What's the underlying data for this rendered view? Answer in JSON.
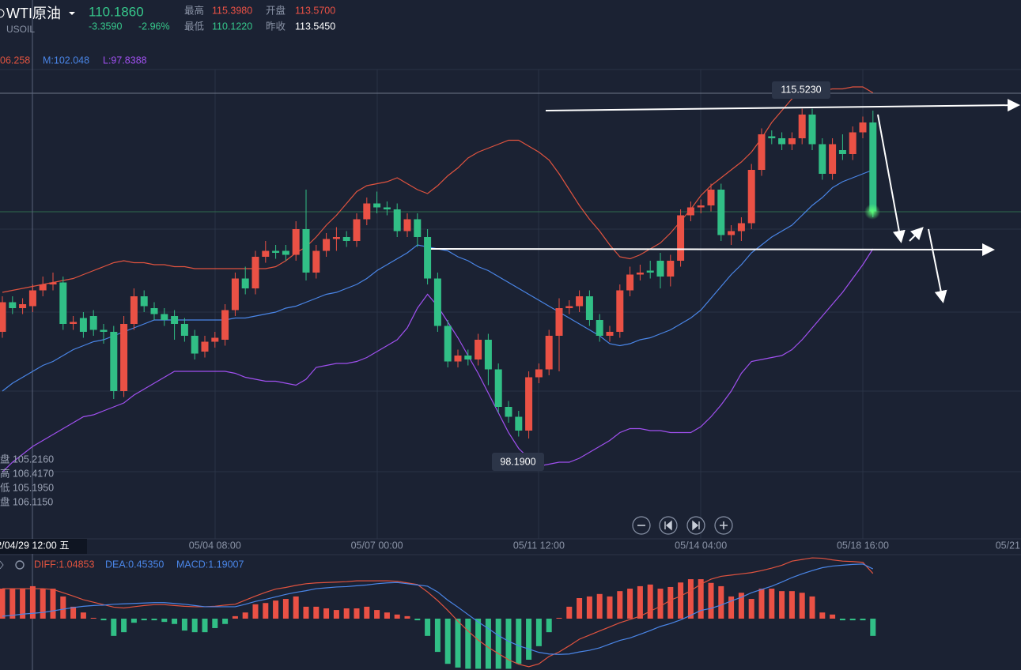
{
  "header": {
    "symbol": "WTI原油",
    "code": "USOIL",
    "price": "110.1860",
    "change": "-3.3590",
    "change_pct": "-2.96%",
    "stats": [
      {
        "label": "最高",
        "value": "115.3980"
      },
      {
        "label": "开盘",
        "value": "113.5700"
      },
      {
        "label": "最低",
        "value": "110.1220"
      },
      {
        "label": "昨收",
        "value": "113.5450"
      }
    ]
  },
  "crosshair_info": [
    "盘 105.2160",
    "高 106.4170",
    "低 105.1950",
    "盘 106.1150"
  ],
  "chart_data": [
    {
      "type": "candlestick",
      "up_color": "#ea5145",
      "down_color": "#31bf86",
      "ylim": [
        92.8,
        120
      ],
      "annotations": [
        {
          "label": "115.5230"
        },
        {
          "label": "98.1900"
        }
      ],
      "categories": [
        null,
        null,
        null,
        "2/04/29 12:00 五",
        null,
        null,
        null,
        null,
        null,
        null,
        null,
        null,
        null,
        null,
        null,
        null,
        null,
        null,
        null,
        null,
        null,
        "05/04 08:00",
        null,
        null,
        null,
        null,
        null,
        null,
        null,
        null,
        null,
        null,
        null,
        null,
        null,
        null,
        null,
        "05/07 00:00",
        null,
        null,
        null,
        null,
        null,
        null,
        null,
        null,
        null,
        null,
        null,
        null,
        null,
        null,
        null,
        "05/11 12:00",
        null,
        null,
        null,
        null,
        null,
        null,
        null,
        null,
        null,
        null,
        null,
        null,
        null,
        null,
        null,
        "05/14 04:00",
        null,
        null,
        null,
        null,
        null,
        null,
        null,
        null,
        null,
        null,
        null,
        null,
        null,
        null,
        null,
        "05/18 16:00",
        null,
        null,
        null,
        null,
        null,
        null,
        null,
        null,
        null,
        null,
        null,
        null,
        null,
        "05/21"
      ],
      "open": [
        103.2,
        104.7,
        104.4,
        104.5,
        105.3,
        105.6,
        105.7,
        103.6,
        103.9,
        104.0,
        103.3,
        103.2,
        100.2,
        103.6,
        105.0,
        104.4,
        104.1,
        104.0,
        103.6,
        103.0,
        102.2,
        102.7,
        102.8,
        104.3,
        105.9,
        105.4,
        107.0,
        107.3,
        107.3,
        107.1,
        108.4,
        106.2,
        107.3,
        107.9,
        108.0,
        107.8,
        108.9,
        109.7,
        109.5,
        109.4,
        108.3,
        108.9,
        108.0,
        105.9,
        103.5,
        101.7,
        102.0,
        101.8,
        102.8,
        101.3,
        99.4,
        98.9,
        98.2,
        100.9,
        101.3,
        103.0,
        104.4,
        104.5,
        105.0,
        103.8,
        103.0,
        103.2,
        105.3,
        106.1,
        106.3,
        106.8,
        106.0,
        106.8,
        109.1,
        109.5,
        109.6,
        110.4,
        108.1,
        108.3,
        108.7,
        111.4,
        113.1,
        113.0,
        112.7,
        113.0,
        114.2,
        112.7,
        111.2,
        112.4,
        112.2,
        113.3,
        113.8,
        null,
        null,
        null,
        null,
        null,
        null,
        null,
        null,
        null,
        null,
        null,
        null,
        null
      ],
      "high": [
        105.0,
        105.0,
        104.9,
        105.6,
        106.0,
        106.2,
        106.0,
        104.0,
        104.2,
        104.3,
        103.6,
        103.5,
        104.0,
        105.4,
        105.3,
        104.7,
        104.4,
        104.3,
        103.9,
        103.3,
        103.0,
        103.2,
        104.6,
        106.2,
        106.5,
        107.3,
        107.8,
        107.6,
        107.6,
        108.8,
        110.4,
        107.6,
        108.2,
        108.5,
        108.3,
        109.2,
        110.0,
        110.3,
        109.8,
        109.7,
        109.2,
        109.2,
        108.4,
        106.2,
        103.8,
        102.3,
        102.3,
        103.1,
        103.1,
        101.6,
        99.7,
        99.2,
        101.2,
        101.6,
        103.3,
        104.9,
        104.8,
        105.3,
        105.3,
        104.1,
        103.5,
        105.6,
        106.5,
        106.6,
        106.8,
        107.2,
        107.1,
        109.4,
        109.8,
        109.9,
        110.7,
        110.7,
        108.6,
        109.0,
        111.7,
        113.5,
        113.4,
        113.3,
        113.3,
        114.5,
        114.5,
        113.0,
        113.0,
        113.2,
        113.6,
        114.1,
        114.4,
        null,
        null,
        null,
        null,
        null,
        null,
        null,
        null,
        null,
        null,
        null,
        null,
        null
      ],
      "low": [
        102.9,
        104.1,
        104.1,
        104.2,
        105.0,
        105.3,
        103.3,
        103.3,
        102.9,
        103.0,
        102.6,
        99.8,
        99.9,
        103.3,
        104.2,
        103.8,
        103.5,
        102.8,
        102.7,
        101.8,
        101.9,
        102.4,
        102.5,
        104.0,
        105.1,
        105.1,
        106.7,
        106.9,
        106.8,
        106.8,
        105.8,
        105.9,
        107.0,
        107.3,
        107.5,
        107.5,
        108.6,
        109.2,
        109.1,
        108.0,
        108.0,
        107.5,
        105.6,
        103.2,
        101.4,
        101.4,
        101.5,
        101.5,
        100.5,
        99.1,
        98.6,
        97.9,
        97.8,
        100.6,
        101.0,
        101.2,
        104.1,
        104.2,
        103.5,
        102.7,
        102.7,
        102.9,
        105.0,
        105.8,
        105.9,
        105.4,
        105.5,
        106.5,
        108.8,
        109.2,
        109.3,
        107.8,
        107.6,
        107.8,
        108.4,
        111.1,
        112.7,
        112.4,
        112.4,
        112.7,
        112.4,
        110.9,
        110.9,
        111.9,
        111.9,
        113.0,
        109.0,
        null,
        null,
        null,
        null,
        null,
        null,
        null,
        null,
        null,
        null,
        null,
        null,
        null
      ],
      "close": [
        104.7,
        104.4,
        104.6,
        105.3,
        105.6,
        105.7,
        103.6,
        103.7,
        103.2,
        103.3,
        103.2,
        100.2,
        103.6,
        105.0,
        104.5,
        104.1,
        103.8,
        103.6,
        103.0,
        102.1,
        102.7,
        102.9,
        104.3,
        105.9,
        105.4,
        107.0,
        107.3,
        107.2,
        107.1,
        108.4,
        106.2,
        107.3,
        107.9,
        108.0,
        107.8,
        108.9,
        109.7,
        109.5,
        109.4,
        108.3,
        108.9,
        108.0,
        105.9,
        103.5,
        101.7,
        102.0,
        101.8,
        102.8,
        101.3,
        99.4,
        98.9,
        98.2,
        100.9,
        101.3,
        103.0,
        104.4,
        104.5,
        105.0,
        103.8,
        103.0,
        103.2,
        105.3,
        106.1,
        106.2,
        106.2,
        106.0,
        106.8,
        109.1,
        109.5,
        109.6,
        110.4,
        108.1,
        108.3,
        108.7,
        111.4,
        113.2,
        113.0,
        112.7,
        113.0,
        114.2,
        112.7,
        111.2,
        112.7,
        112.2,
        113.3,
        113.8,
        109.3,
        null,
        null,
        null,
        null,
        null,
        null,
        null,
        null,
        null,
        null,
        null,
        null,
        null
      ],
      "series": [
        {
          "name": "06.258",
          "color": "#e0533f",
          "values": [
            105.2,
            105.3,
            105.4,
            105.5,
            105.6,
            105.7,
            105.8,
            105.9,
            106.1,
            106.3,
            106.5,
            106.7,
            106.8,
            106.7,
            106.7,
            106.6,
            106.6,
            106.5,
            106.5,
            106.4,
            106.4,
            106.4,
            106.4,
            106.4,
            106.4,
            106.4,
            106.4,
            106.5,
            106.8,
            107.2,
            107.5,
            108.0,
            108.6,
            109.1,
            109.7,
            110.3,
            110.6,
            110.7,
            110.8,
            111.0,
            110.7,
            110.4,
            110.2,
            110.6,
            111.1,
            111.5,
            112.0,
            112.3,
            112.5,
            112.7,
            112.9,
            112.9,
            112.6,
            112.3,
            111.9,
            111.2,
            110.4,
            109.6,
            108.9,
            108.3,
            107.6,
            107.0,
            106.9,
            107.1,
            107.4,
            107.7,
            108.2,
            108.8,
            109.4,
            110.1,
            110.6,
            111.0,
            111.4,
            111.8,
            112.3,
            113.0,
            113.8,
            114.4,
            115.0,
            115.2,
            115.3,
            115.4,
            115.5,
            115.5,
            115.6,
            115.6,
            115.3,
            null,
            null,
            null,
            null,
            null,
            null,
            null,
            null,
            null,
            null,
            null,
            null,
            null
          ]
        },
        {
          "name": "M:102.048",
          "color": "#4a86e8",
          "values": [
            100.2,
            100.6,
            100.9,
            101.2,
            101.5,
            101.7,
            102.0,
            102.3,
            102.5,
            102.7,
            102.8,
            103.0,
            103.2,
            103.4,
            103.6,
            103.8,
            103.8,
            103.8,
            103.8,
            103.8,
            103.8,
            103.8,
            103.8,
            103.9,
            103.9,
            104.0,
            104.1,
            104.2,
            104.4,
            104.5,
            104.7,
            104.9,
            105.1,
            105.2,
            105.4,
            105.6,
            105.9,
            106.3,
            106.6,
            106.9,
            107.2,
            107.6,
            107.5,
            107.4,
            107.3,
            107.0,
            106.8,
            106.5,
            106.3,
            106.0,
            105.7,
            105.4,
            105.1,
            104.8,
            104.5,
            104.2,
            103.9,
            103.6,
            103.3,
            103.0,
            102.6,
            102.5,
            102.6,
            102.8,
            102.9,
            103.1,
            103.3,
            103.6,
            103.9,
            104.3,
            104.9,
            105.5,
            106.1,
            106.6,
            107.2,
            107.6,
            108.0,
            108.3,
            108.6,
            109.1,
            109.6,
            110.0,
            110.5,
            110.8,
            111.0,
            111.2,
            111.4,
            null,
            null,
            null,
            null,
            null,
            null,
            null,
            null,
            null,
            null,
            null,
            null,
            null
          ]
        },
        {
          "name": "L:97.8388",
          "color": "#a050f0",
          "values": [
            96.1,
            96.6,
            97.0,
            97.4,
            97.7,
            98.0,
            98.3,
            98.6,
            98.9,
            99.0,
            99.2,
            99.4,
            99.6,
            100.0,
            100.3,
            100.6,
            100.9,
            101.2,
            101.2,
            101.2,
            101.2,
            101.2,
            101.2,
            101.1,
            100.9,
            100.8,
            100.7,
            100.7,
            100.6,
            100.5,
            100.8,
            101.4,
            101.5,
            101.6,
            101.6,
            101.7,
            101.9,
            102.2,
            102.5,
            102.8,
            103.4,
            104.4,
            105.1,
            104.5,
            103.7,
            102.9,
            102.0,
            101.1,
            100.1,
            99.1,
            98.1,
            97.3,
            96.8,
            96.4,
            96.5,
            96.6,
            96.6,
            96.8,
            97.1,
            97.4,
            97.7,
            98.1,
            98.3,
            98.3,
            98.2,
            98.2,
            98.1,
            98.1,
            98.1,
            98.4,
            98.9,
            99.5,
            100.2,
            101.1,
            101.7,
            101.8,
            101.9,
            102.0,
            102.3,
            102.8,
            103.4,
            104.0,
            104.6,
            105.2,
            105.9,
            106.6,
            107.4,
            null,
            null,
            null,
            null,
            null,
            null,
            null,
            null,
            null,
            null,
            null,
            null,
            null
          ]
        }
      ]
    },
    {
      "type": "macd",
      "ylim": [
        -1.25,
        1.5
      ],
      "up_color": "#ea5145",
      "down_color": "#31bf86",
      "macd_label": "MACD:1.19007",
      "macd_color": "#4a86e8",
      "histogram": [
        0.73,
        0.73,
        0.73,
        0.79,
        0.73,
        0.73,
        0.54,
        0.29,
        0.15,
        0.02,
        -0.04,
        -0.42,
        -0.33,
        -0.1,
        -0.04,
        -0.04,
        -0.08,
        -0.13,
        -0.29,
        -0.33,
        -0.33,
        -0.23,
        -0.13,
        0.06,
        0.15,
        0.35,
        0.38,
        0.44,
        0.48,
        0.54,
        0.29,
        0.29,
        0.25,
        0.21,
        0.25,
        0.25,
        0.29,
        0.21,
        0.15,
        0.1,
        0.06,
        -0.04,
        -0.42,
        -0.81,
        -1.1,
        -1.19,
        -1.22,
        -1.22,
        -1.22,
        -1.22,
        -1.22,
        -1.1,
        -1.0,
        -0.67,
        -0.33,
        0.02,
        0.29,
        0.5,
        0.54,
        0.6,
        0.54,
        0.67,
        0.73,
        0.79,
        0.83,
        0.73,
        0.77,
        0.88,
        0.96,
        0.96,
        0.87,
        0.79,
        0.54,
        0.63,
        0.48,
        0.73,
        0.73,
        0.67,
        0.67,
        0.63,
        0.54,
        0.15,
        0.1,
        -0.04,
        -0.04,
        -0.04,
        -0.42,
        null,
        null,
        null,
        null,
        null,
        null,
        null,
        null,
        null,
        null,
        null,
        null,
        null
      ],
      "series": [
        {
          "name": "DIFF:1.04853",
          "color": "#e0533f",
          "values": [
            0.73,
            0.73,
            0.73,
            0.73,
            0.73,
            0.71,
            0.63,
            0.55,
            0.46,
            0.4,
            0.34,
            0.28,
            0.26,
            0.29,
            0.32,
            0.34,
            0.34,
            0.32,
            0.3,
            0.29,
            0.29,
            0.3,
            0.33,
            0.35,
            0.45,
            0.55,
            0.64,
            0.72,
            0.76,
            0.81,
            0.85,
            0.87,
            0.88,
            0.89,
            0.9,
            0.92,
            0.92,
            0.92,
            0.92,
            0.91,
            0.87,
            0.83,
            0.65,
            0.44,
            0.2,
            -0.06,
            -0.3,
            -0.52,
            -0.7,
            -0.85,
            -1.0,
            -1.11,
            -1.17,
            -1.1,
            -0.92,
            -0.81,
            -0.66,
            -0.5,
            -0.4,
            -0.3,
            -0.2,
            -0.1,
            -0.02,
            0.06,
            0.18,
            0.3,
            0.45,
            0.55,
            0.68,
            0.84,
            0.96,
            1.03,
            1.06,
            1.09,
            1.12,
            1.17,
            1.23,
            1.3,
            1.4,
            1.44,
            1.48,
            1.47,
            1.43,
            1.4,
            1.39,
            1.37,
            1.1,
            null,
            null,
            null,
            null,
            null,
            null,
            null,
            null,
            null,
            null,
            null,
            null,
            null
          ]
        },
        {
          "name": "DEA:0.45350",
          "color": "#4a86e8",
          "values": [
            0.06,
            0.08,
            0.11,
            0.13,
            0.15,
            0.19,
            0.23,
            0.27,
            0.3,
            0.32,
            0.33,
            0.35,
            0.36,
            0.37,
            0.38,
            0.39,
            0.39,
            0.37,
            0.35,
            0.32,
            0.29,
            0.29,
            0.29,
            0.29,
            0.35,
            0.42,
            0.47,
            0.53,
            0.59,
            0.64,
            0.68,
            0.73,
            0.75,
            0.77,
            0.78,
            0.8,
            0.82,
            0.85,
            0.87,
            0.88,
            0.85,
            0.82,
            0.79,
            0.65,
            0.45,
            0.28,
            0.1,
            -0.08,
            -0.24,
            -0.41,
            -0.55,
            -0.66,
            -0.74,
            -0.82,
            -0.86,
            -0.87,
            -0.86,
            -0.81,
            -0.77,
            -0.71,
            -0.62,
            -0.53,
            -0.47,
            -0.38,
            -0.29,
            -0.19,
            -0.12,
            -0.03,
            0.08,
            0.2,
            0.25,
            0.33,
            0.43,
            0.52,
            0.63,
            0.71,
            0.79,
            0.89,
            1.0,
            1.09,
            1.17,
            1.24,
            1.28,
            1.3,
            1.32,
            1.33,
            1.21,
            null,
            null,
            null,
            null,
            null,
            null,
            null,
            null,
            null,
            null,
            null,
            null,
            null
          ]
        }
      ]
    }
  ]
}
